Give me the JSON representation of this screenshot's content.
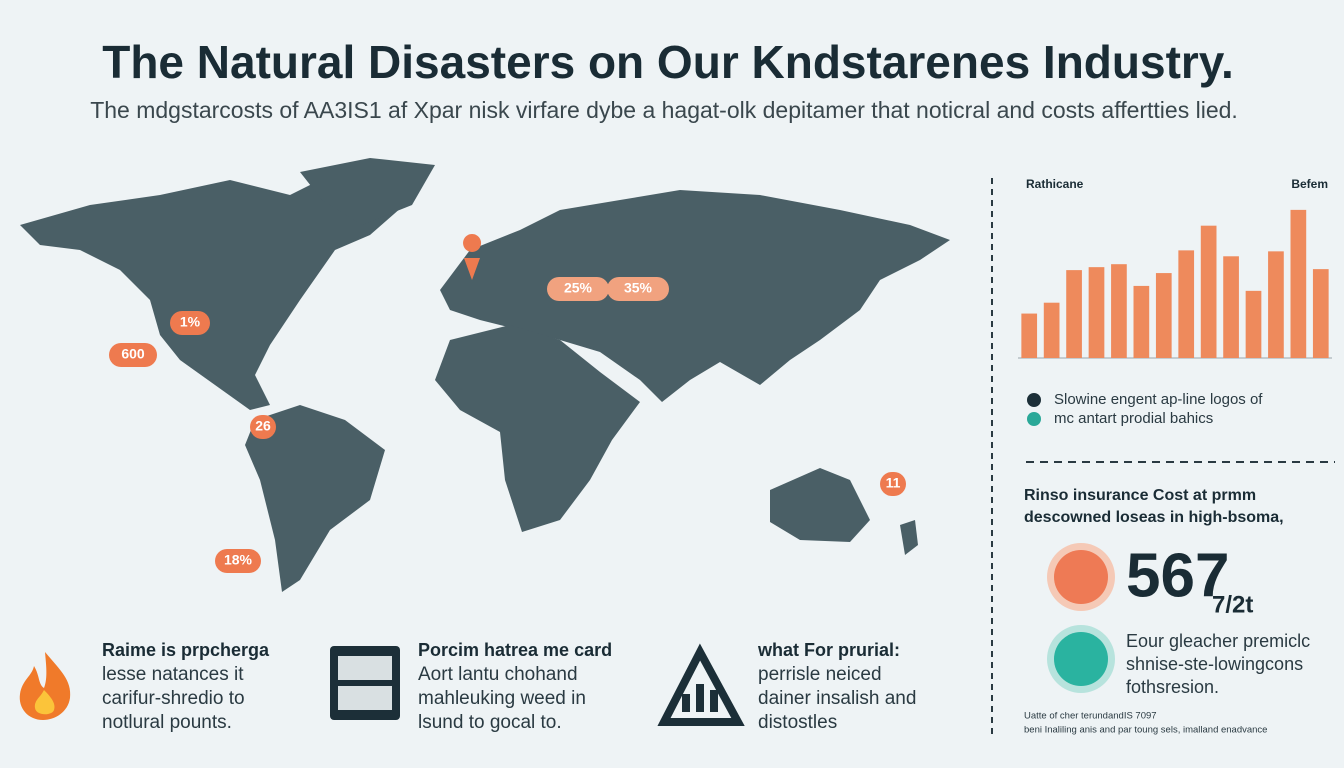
{
  "header": {
    "title": "The Natural Disasters on Our Kndstarenes Industry.",
    "subtitle": "The mdgstarcosts of AA3IS1 af Xpar nisk virfare dybe a hagat-olk depitamer that noticral and costs affertties lied."
  },
  "map": {
    "badges": [
      "1%",
      "600",
      "25%",
      "35%",
      "26",
      "11",
      "18%"
    ]
  },
  "chart_data": {
    "type": "bar",
    "title_left": "Rathicane",
    "title_right": "Befem",
    "values": [
      45,
      56,
      89,
      92,
      95,
      73,
      86,
      109,
      134,
      103,
      68,
      108,
      150,
      90
    ],
    "color": "#ee8a5c",
    "ylim": [
      0,
      160
    ]
  },
  "legend": [
    {
      "label": "Slowine engent ap-line logos of",
      "color": "#1c2f38"
    },
    {
      "label": "mc antart prodial bahics",
      "color": "#2aa898"
    }
  ],
  "cost": {
    "title": [
      "Rinso insurance Cost at prmm",
      "descowned loseas in high-bsoma,"
    ],
    "number": "567",
    "suffix": "7/2t",
    "text": [
      "Eour gleacher premiclc",
      "shnise-ste-lowingcons",
      "fothsresion."
    ]
  },
  "footnote": [
    "Uatte of cher terundandIS 7097",
    "beni Inaliling anis and par toung sels, imalland enadvance"
  ],
  "features": [
    {
      "title": "Raime is prpcherga",
      "body": [
        "lesse natances it",
        "carifur-shredio to",
        "notlural pounts."
      ]
    },
    {
      "title": "Porcim hatrea me card",
      "body": [
        "Aort lantu chohand",
        "mahleuking weed in",
        "lsund to gocal to."
      ]
    },
    {
      "title": "what For prurial:",
      "body": [
        "perrisle neiced",
        "dainer insalish and",
        "distostles"
      ]
    }
  ]
}
